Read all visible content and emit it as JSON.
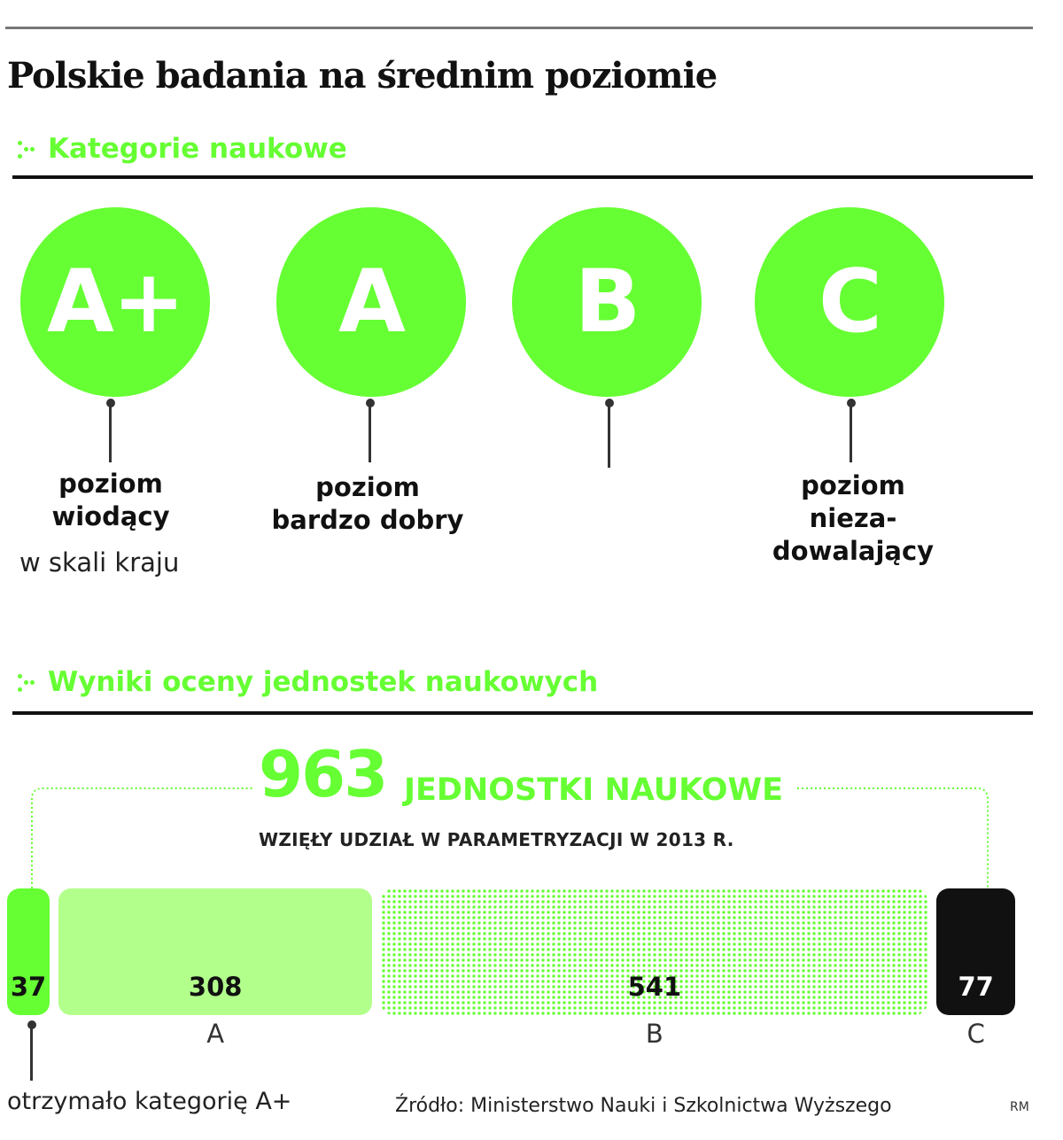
{
  "title": "Polskie badania na średnim poziomie",
  "colors": {
    "accent": "#66ff33",
    "accent_light": "#b3ff8c",
    "dark": "#111111"
  },
  "categories_section": {
    "heading": "Kategorie naukowe",
    "items": [
      {
        "letter": "A+",
        "desc_line1": "poziom",
        "desc_line2": "wiodący",
        "desc_line3": "",
        "note": "w skali kraju"
      },
      {
        "letter": "A",
        "desc_line1": "poziom",
        "desc_line2": "bardzo dobry",
        "desc_line3": "",
        "note": ""
      },
      {
        "letter": "B",
        "desc_line1": "",
        "desc_line2": "",
        "desc_line3": "",
        "note": ""
      },
      {
        "letter": "C",
        "desc_line1": "poziom",
        "desc_line2": "nieza-",
        "desc_line3": "dowalający",
        "note": ""
      }
    ]
  },
  "results_section": {
    "heading": "Wyniki oceny jednostek naukowych",
    "total_number": "963",
    "total_label": "JEDNOSTKI NAUKOWE",
    "total_sublabel": "WZIĘŁY UDZIAŁ W PARAMETRYZACJI W 2013 R.",
    "aplus_note": "otrzymało kategorię A+"
  },
  "chart_data": {
    "type": "bar",
    "orientation": "horizontal-stacked",
    "categories": [
      "A+",
      "A",
      "B",
      "C"
    ],
    "category_labels": [
      "",
      "A",
      "B",
      "C"
    ],
    "values": [
      37,
      308,
      541,
      77
    ],
    "total": 963
  },
  "source": "Źródło: Ministerstwo Nauki i Szkolnictwa Wyższego",
  "credit": "RM"
}
